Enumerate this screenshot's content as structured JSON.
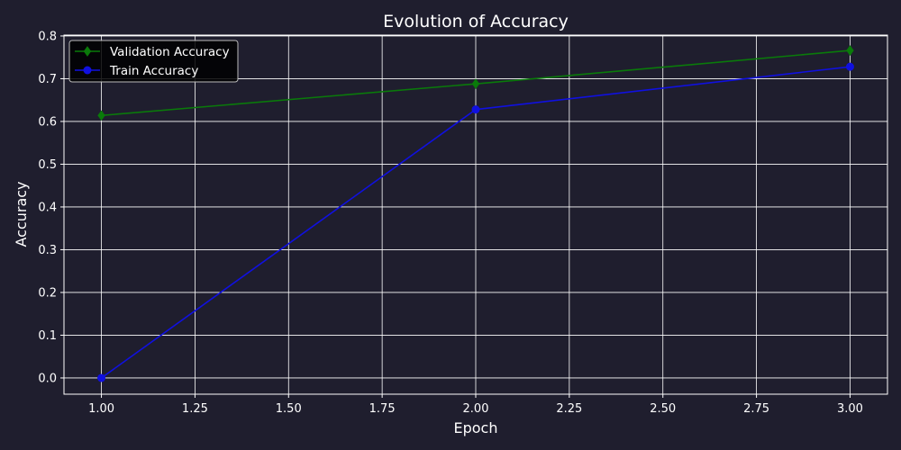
{
  "chart_data": {
    "type": "line",
    "title": "Evolution of Accuracy",
    "xlabel": "Epoch",
    "ylabel": "Accuracy",
    "xlim": [
      0.9,
      3.1
    ],
    "ylim": [
      -0.038,
      0.802
    ],
    "grid": true,
    "legend_position": "top-left",
    "x_ticks": [
      "1.00",
      "1.25",
      "1.50",
      "1.75",
      "2.00",
      "2.25",
      "2.50",
      "2.75",
      "3.00"
    ],
    "y_ticks": [
      "0.0",
      "0.1",
      "0.2",
      "0.3",
      "0.4",
      "0.5",
      "0.6",
      "0.7",
      "0.8"
    ],
    "series": [
      {
        "name": "Validation Accuracy",
        "x": [
          1,
          2,
          3
        ],
        "values": [
          0.614,
          0.688,
          0.766
        ],
        "color": "#0a7a0a",
        "marker": "diamond"
      },
      {
        "name": "Train Accuracy",
        "x": [
          1,
          2,
          3
        ],
        "values": [
          0.0,
          0.628,
          0.728
        ],
        "color": "#1010e0",
        "marker": "circle"
      }
    ]
  },
  "colors": {
    "background": "#1f1e2e",
    "grid": "#ffffff",
    "text": "#ffffff",
    "legend_background": "#000000"
  }
}
